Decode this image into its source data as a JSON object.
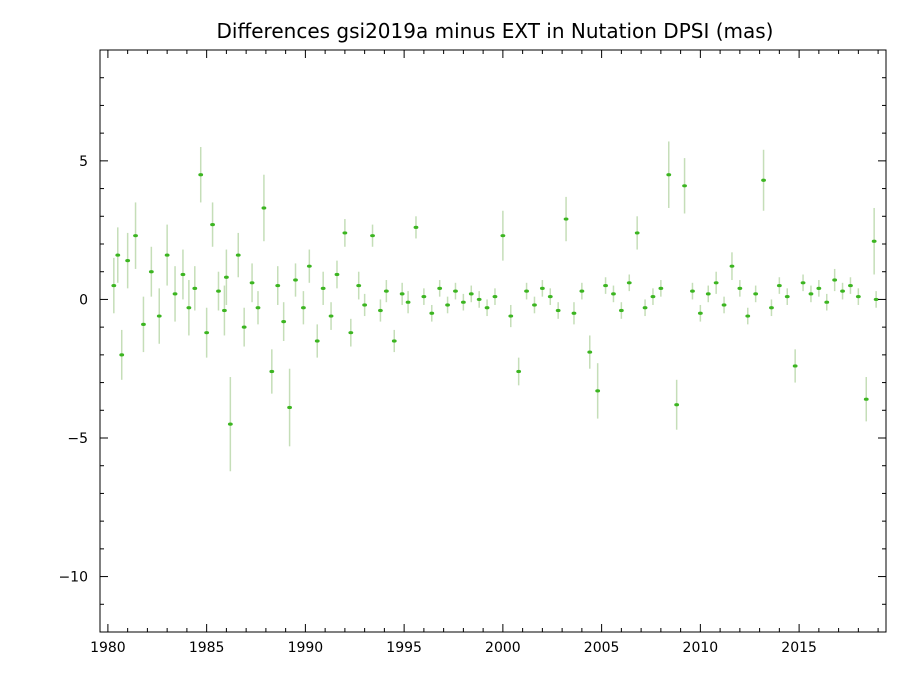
{
  "chart_data": {
    "type": "scatter",
    "title": "Differences gsi2019a minus EXT in Nutation DPSI (mas)",
    "xlabel": "",
    "ylabel": "",
    "xlim": [
      1979.6,
      2019.4
    ],
    "ylim": [
      -12,
      9
    ],
    "x_ticks": [
      1980,
      1985,
      1990,
      1995,
      2000,
      2005,
      2010,
      2015
    ],
    "y_ticks": [
      -10,
      -5,
      0,
      5
    ],
    "grid": false,
    "legend": "none",
    "colors": {
      "points": "#3cb521",
      "error_bars": "#c5deb8",
      "axes": "#000000",
      "background": "#ffffff"
    },
    "series": [
      {
        "marker": "dot",
        "x": [
          1980.3,
          1980.5,
          1980.7,
          1981.0,
          1981.4,
          1981.8,
          1982.2,
          1982.6,
          1983.0,
          1983.4,
          1983.8,
          1984.1,
          1984.4,
          1984.7,
          1985.0,
          1985.3,
          1985.6,
          1985.9,
          1986.0,
          1986.2,
          1986.6,
          1986.9,
          1987.3,
          1987.6,
          1987.9,
          1988.3,
          1988.6,
          1988.9,
          1989.2,
          1989.5,
          1989.9,
          1990.2,
          1990.6,
          1990.9,
          1991.3,
          1991.6,
          1992.0,
          1992.3,
          1992.7,
          1993.0,
          1993.4,
          1993.8,
          1994.1,
          1994.5,
          1994.9,
          1995.2,
          1995.6,
          1996.0,
          1996.4,
          1996.8,
          1997.2,
          1997.6,
          1998.0,
          1998.4,
          1998.8,
          1999.2,
          1999.6,
          2000.0,
          2000.4,
          2000.8,
          2001.2,
          2001.6,
          2002.0,
          2002.4,
          2002.8,
          2003.2,
          2003.6,
          2004.0,
          2004.4,
          2004.8,
          2005.2,
          2005.6,
          2006.0,
          2006.4,
          2006.8,
          2007.2,
          2007.6,
          2008.0,
          2008.4,
          2008.8,
          2009.2,
          2009.6,
          2010.0,
          2010.4,
          2010.8,
          2011.2,
          2011.6,
          2012.0,
          2012.4,
          2012.8,
          2013.2,
          2013.6,
          2014.0,
          2014.4,
          2014.8,
          2015.2,
          2015.6,
          2016.0,
          2016.4,
          2016.8,
          2017.2,
          2017.6,
          2018.0,
          2018.4,
          2018.8,
          2018.9
        ],
        "y": [
          0.5,
          1.6,
          -2.0,
          1.4,
          2.3,
          -0.9,
          1.0,
          -0.6,
          1.6,
          0.2,
          0.9,
          -0.3,
          0.4,
          4.5,
          -1.2,
          2.7,
          0.3,
          -0.4,
          0.8,
          -4.5,
          1.6,
          -1.0,
          0.6,
          -0.3,
          3.3,
          -2.6,
          0.5,
          -0.8,
          -3.9,
          0.7,
          -0.3,
          1.2,
          -1.5,
          0.4,
          -0.6,
          0.9,
          2.4,
          -1.2,
          0.5,
          -0.2,
          2.3,
          -0.4,
          0.3,
          -1.5,
          0.2,
          -0.1,
          2.6,
          0.1,
          -0.5,
          0.4,
          -0.2,
          0.3,
          -0.1,
          0.2,
          0.0,
          -0.3,
          0.1,
          2.3,
          -0.6,
          -2.6,
          0.3,
          -0.2,
          0.4,
          0.1,
          -0.4,
          2.9,
          -0.5,
          0.3,
          -1.9,
          -3.3,
          0.5,
          0.2,
          -0.4,
          0.6,
          2.4,
          -0.3,
          0.1,
          0.4,
          4.5,
          -3.8,
          4.1,
          0.3,
          -0.5,
          0.2,
          0.6,
          -0.2,
          1.2,
          0.4,
          -0.6,
          0.2,
          4.3,
          -0.3,
          0.5,
          0.1,
          -2.4,
          0.6,
          0.2,
          0.4,
          -0.1,
          0.7,
          0.3,
          0.5,
          0.1,
          -3.6,
          2.1,
          0.0
        ],
        "err": [
          1.0,
          1.0,
          0.9,
          1.0,
          1.2,
          1.0,
          0.9,
          1.0,
          1.1,
          1.0,
          0.9,
          1.0,
          0.8,
          1.0,
          0.9,
          0.8,
          0.7,
          0.9,
          1.0,
          1.7,
          0.8,
          0.7,
          0.7,
          0.6,
          1.2,
          0.8,
          0.7,
          0.7,
          1.4,
          0.6,
          0.6,
          0.6,
          0.6,
          0.6,
          0.5,
          0.5,
          0.5,
          0.5,
          0.5,
          0.4,
          0.4,
          0.4,
          0.4,
          0.4,
          0.4,
          0.4,
          0.4,
          0.3,
          0.3,
          0.3,
          0.3,
          0.3,
          0.3,
          0.3,
          0.3,
          0.3,
          0.3,
          0.9,
          0.4,
          0.5,
          0.3,
          0.3,
          0.3,
          0.3,
          0.3,
          0.8,
          0.4,
          0.3,
          0.6,
          1.0,
          0.3,
          0.3,
          0.3,
          0.3,
          0.6,
          0.3,
          0.3,
          0.3,
          1.2,
          0.9,
          1.0,
          0.3,
          0.3,
          0.3,
          0.4,
          0.3,
          0.5,
          0.3,
          0.3,
          0.3,
          1.1,
          0.3,
          0.3,
          0.3,
          0.6,
          0.3,
          0.3,
          0.3,
          0.3,
          0.4,
          0.3,
          0.3,
          0.3,
          0.8,
          1.2,
          0.3
        ]
      }
    ]
  }
}
